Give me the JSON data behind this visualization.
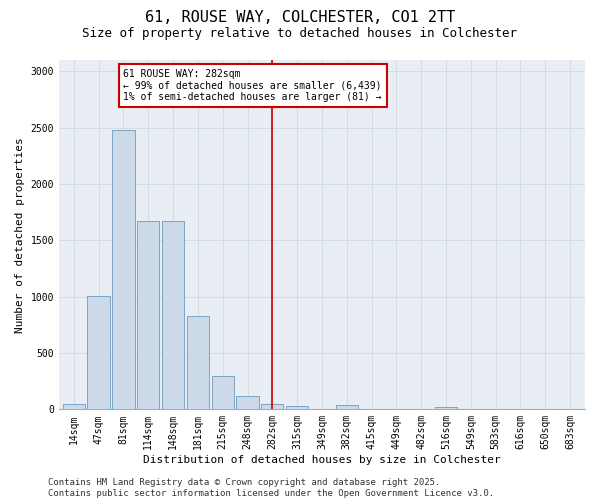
{
  "title_line1": "61, ROUSE WAY, COLCHESTER, CO1 2TT",
  "title_line2": "Size of property relative to detached houses in Colchester",
  "xlabel": "Distribution of detached houses by size in Colchester",
  "ylabel": "Number of detached properties",
  "categories": [
    "14sqm",
    "47sqm",
    "81sqm",
    "114sqm",
    "148sqm",
    "181sqm",
    "215sqm",
    "248sqm",
    "282sqm",
    "315sqm",
    "349sqm",
    "382sqm",
    "415sqm",
    "449sqm",
    "482sqm",
    "516sqm",
    "549sqm",
    "583sqm",
    "616sqm",
    "650sqm",
    "683sqm"
  ],
  "values": [
    50,
    1005,
    2480,
    1670,
    1670,
    830,
    300,
    115,
    50,
    30,
    0,
    40,
    0,
    0,
    0,
    25,
    0,
    0,
    0,
    0,
    0
  ],
  "bar_color": "#ccd9e8",
  "bar_edge_color": "#6a9bbf",
  "marker_label_line1": "61 ROUSE WAY: 282sqm",
  "marker_label_line2": "← 99% of detached houses are smaller (6,439)",
  "marker_label_line3": "1% of semi-detached houses are larger (81) →",
  "vline_color": "#cc0000",
  "annotation_box_edge_color": "#cc0000",
  "grid_color": "#d0d8e0",
  "background_color": "#e8eef4",
  "footer_line1": "Contains HM Land Registry data © Crown copyright and database right 2025.",
  "footer_line2": "Contains public sector information licensed under the Open Government Licence v3.0.",
  "ylim": [
    0,
    3100
  ],
  "yticks": [
    0,
    500,
    1000,
    1500,
    2000,
    2500,
    3000
  ],
  "title_fontsize": 11,
  "subtitle_fontsize": 9,
  "axis_label_fontsize": 8,
  "tick_fontsize": 7,
  "annotation_fontsize": 7,
  "footer_fontsize": 6.5
}
